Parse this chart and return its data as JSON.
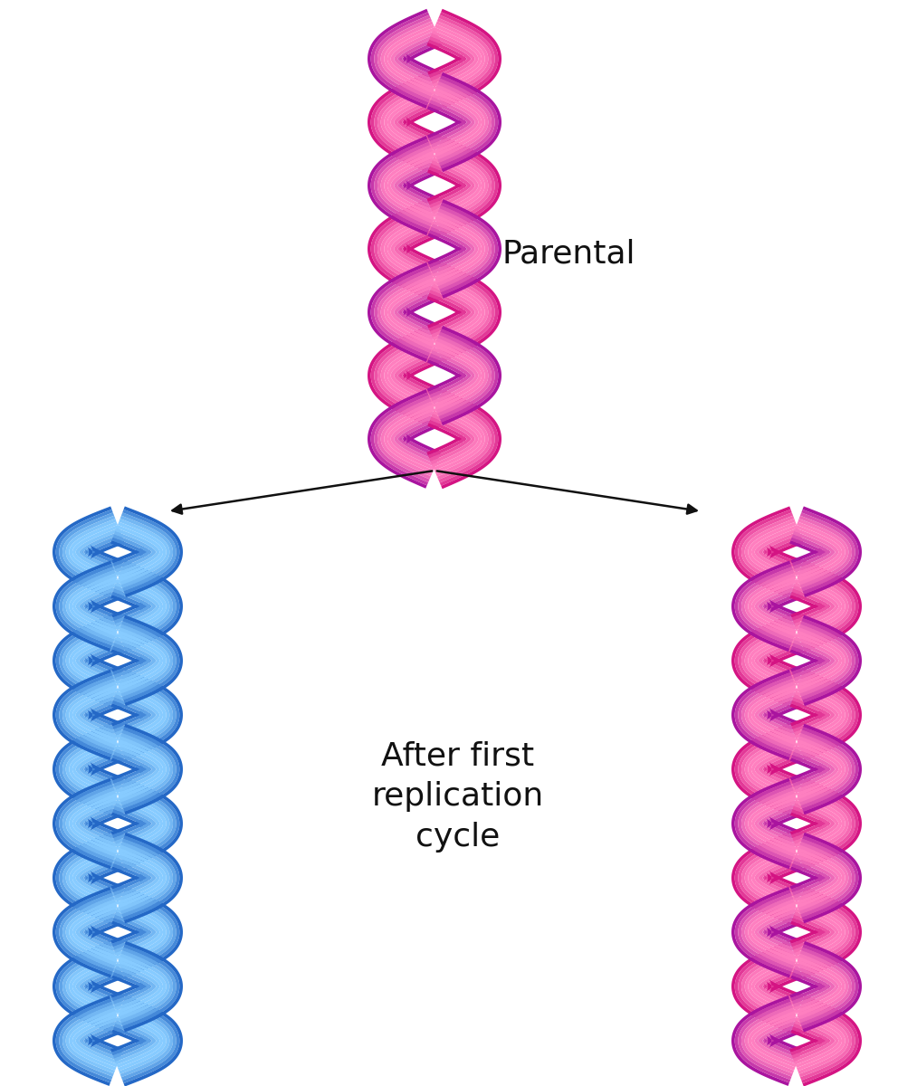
{
  "background_color": "#ffffff",
  "parental_label": "Parental",
  "after_label": "After first\nreplication\ncycle",
  "parental_strand1_dark": "#CC0077",
  "parental_strand1_light": "#FF80C0",
  "parental_strand2_dark": "#990099",
  "parental_strand2_light": "#FF80C0",
  "left_strand1_dark": "#1155BB",
  "left_strand1_light": "#88CCFF",
  "left_strand2_dark": "#1155BB",
  "left_strand2_light": "#88CCFF",
  "right_strand1_dark": "#CC0077",
  "right_strand1_light": "#FF80C0",
  "right_strand2_dark": "#990099",
  "right_strand2_light": "#FF80C0",
  "label_fontsize": 26,
  "label_color": "#111111",
  "arrow_color": "#111111"
}
